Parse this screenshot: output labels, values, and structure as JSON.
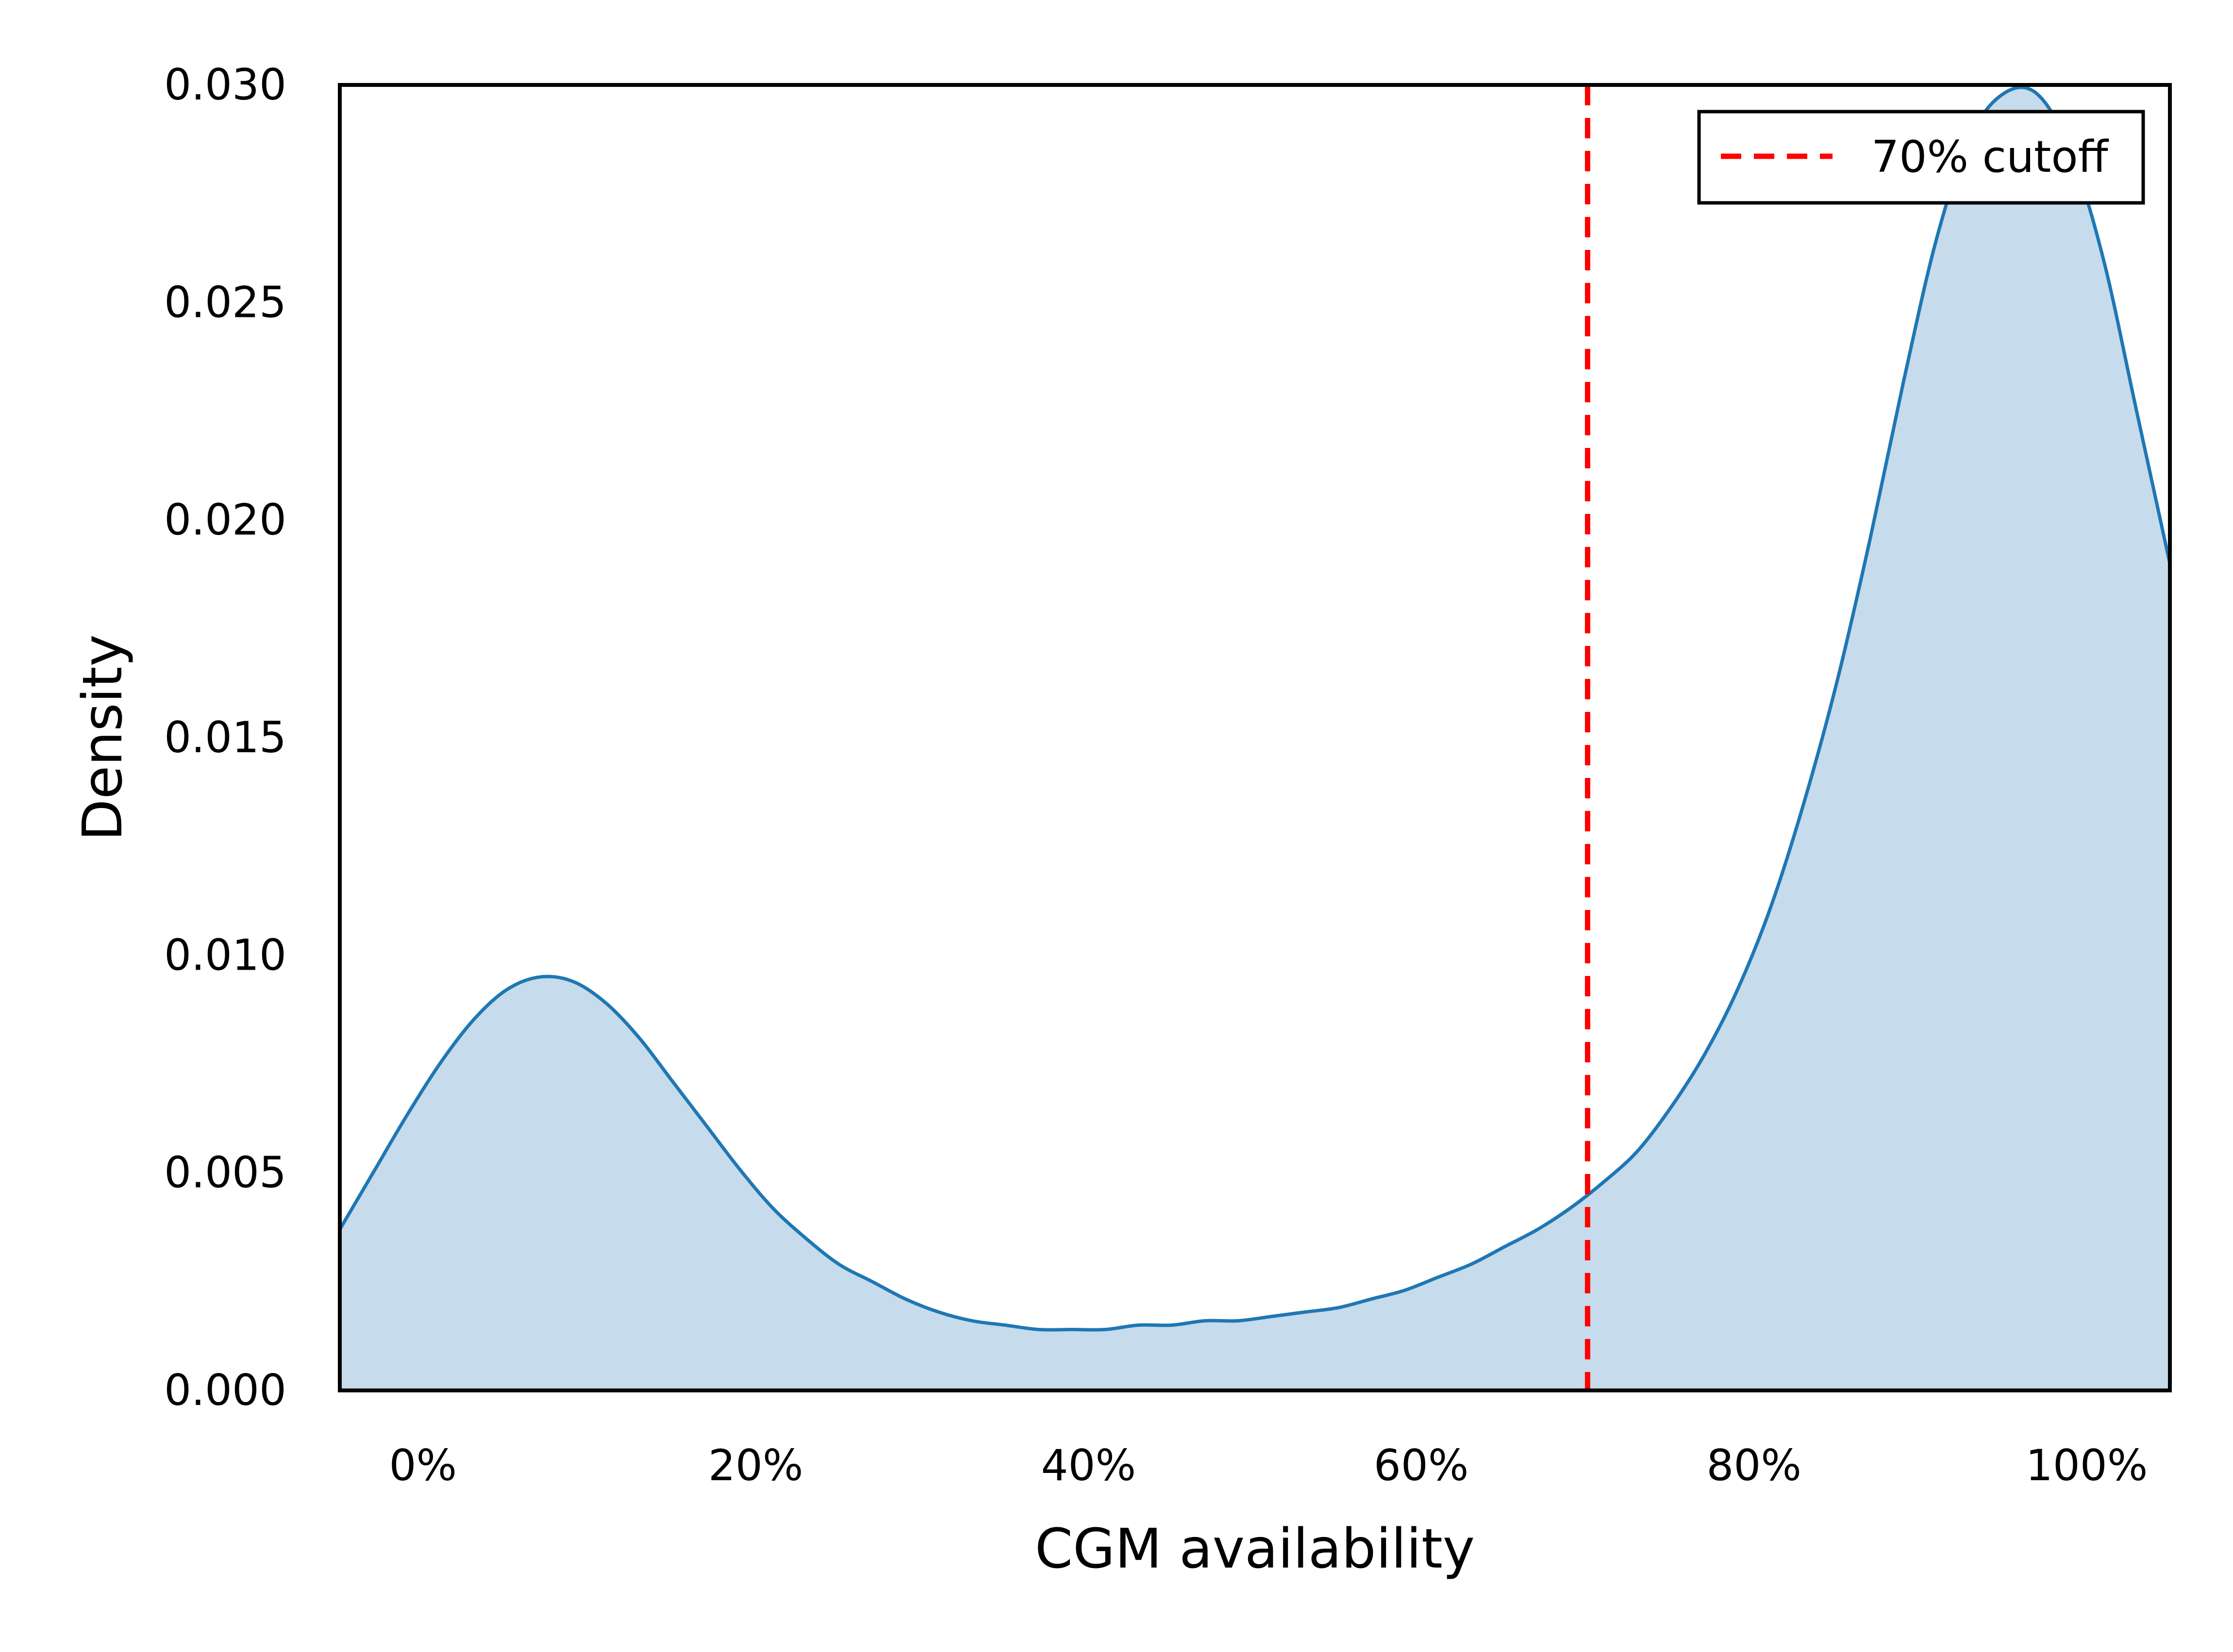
{
  "chart_data": {
    "type": "area",
    "title": "",
    "xlabel": "CGM availability",
    "ylabel": "Density",
    "xlim": [
      -5,
      105
    ],
    "ylim": [
      0,
      0.03
    ],
    "grid": false,
    "legend_position": "top-right",
    "x_ticks": [
      0,
      20,
      40,
      60,
      80,
      100
    ],
    "x_tick_labels": [
      "0%",
      "20%",
      "40%",
      "60%",
      "80%",
      "100%"
    ],
    "y_ticks": [
      0,
      0.005,
      0.01,
      0.015,
      0.02,
      0.025,
      0.03
    ],
    "y_tick_labels": [
      "0.000",
      "0.005",
      "0.010",
      "0.015",
      "0.020",
      "0.025",
      "0.030"
    ],
    "series": [
      {
        "style": "kde-filled",
        "color": "#1f77b4",
        "fill_color": "#c6dbec",
        "x": [
          -5,
          -3,
          -1,
          1,
          3,
          5,
          7,
          9,
          11,
          13,
          15,
          17,
          19,
          21,
          23,
          25,
          27,
          29,
          31,
          33,
          35,
          37,
          39,
          41,
          43,
          45,
          47,
          49,
          51,
          53,
          55,
          57,
          59,
          61,
          63,
          65,
          67,
          69,
          71,
          73,
          75,
          77,
          79,
          81,
          83,
          85,
          87,
          89,
          91,
          93,
          95,
          97,
          99,
          101,
          103,
          105
        ],
        "y": [
          0.0037,
          0.005,
          0.0063,
          0.0075,
          0.0085,
          0.0092,
          0.0095,
          0.0094,
          0.0089,
          0.0081,
          0.0071,
          0.0061,
          0.0051,
          0.0042,
          0.0035,
          0.0029,
          0.0025,
          0.0021,
          0.0018,
          0.0016,
          0.0015,
          0.0014,
          0.0014,
          0.0014,
          0.0015,
          0.0015,
          0.0016,
          0.0016,
          0.0017,
          0.0018,
          0.0019,
          0.0021,
          0.0023,
          0.0026,
          0.0029,
          0.0033,
          0.0037,
          0.0042,
          0.0048,
          0.0055,
          0.0065,
          0.0077,
          0.0092,
          0.0111,
          0.0135,
          0.0163,
          0.0196,
          0.0232,
          0.0265,
          0.0288,
          0.0298,
          0.0298,
          0.0285,
          0.026,
          0.0225,
          0.019
        ]
      }
    ],
    "reference_lines": [
      {
        "label": "70% cutoff",
        "x": 70,
        "color": "#ff0000",
        "style": "dashed"
      }
    ]
  }
}
